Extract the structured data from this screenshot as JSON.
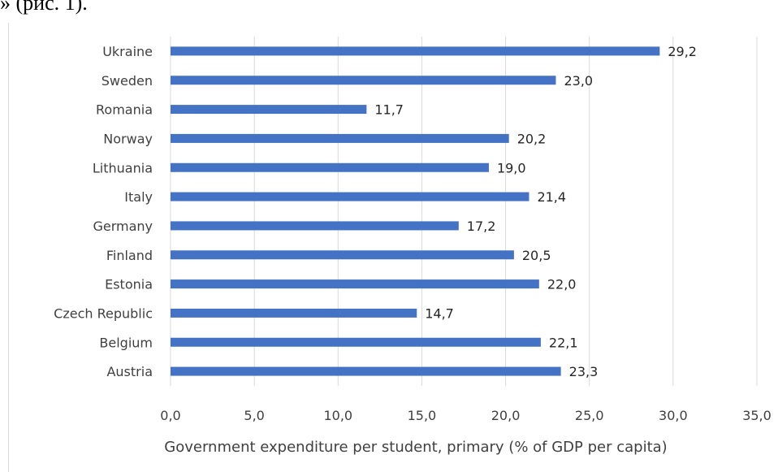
{
  "caption": "» (рис. 1).",
  "chart_data": {
    "type": "bar",
    "orientation": "horizontal",
    "categories": [
      "Ukraine",
      "Sweden",
      "Romania",
      "Norway",
      "Lithuania",
      "Italy",
      "Germany",
      "Finland",
      "Estonia",
      "Czech Republic",
      "Belgium",
      "Austria"
    ],
    "values": [
      29.2,
      23.0,
      11.7,
      20.2,
      19.0,
      21.4,
      17.2,
      20.5,
      22.0,
      14.7,
      22.1,
      23.3
    ],
    "value_labels": [
      "29,2",
      "23,0",
      "11,7",
      "20,2",
      "19,0",
      "21,4",
      "17,2",
      "20,5",
      "22,0",
      "14,7",
      "22,1",
      "23,3"
    ],
    "x_ticks": [
      0,
      5,
      10,
      15,
      20,
      25,
      30,
      35
    ],
    "x_tick_labels": [
      "0,0",
      "5,0",
      "10,0",
      "15,0",
      "20,0",
      "25,0",
      "30,0",
      "35,0"
    ],
    "xlim": [
      0,
      35
    ],
    "xlabel": "Government expenditure per student, primary (% of GDP per capita)",
    "ylabel": "",
    "title": "",
    "grid": "vertical",
    "legend": "none",
    "bar_color": "#4472c4",
    "grid_color": "#d9d9d9"
  }
}
